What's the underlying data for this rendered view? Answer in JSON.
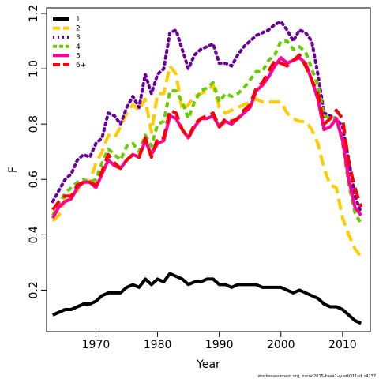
{
  "chart_data": {
    "type": "line",
    "xlabel": "Year",
    "ylabel": "F",
    "xlim": [
      1962,
      2014.5
    ],
    "ylim": [
      0.05,
      1.22
    ],
    "x_ticks": [
      1970,
      1980,
      1990,
      2000,
      2010
    ],
    "y_ticks": [
      0.2,
      0.4,
      0.6,
      0.8,
      1.0,
      1.2
    ],
    "grid": false,
    "legend_position": "top-left",
    "x": [
      1963,
      1964,
      1965,
      1966,
      1967,
      1968,
      1969,
      1970,
      1971,
      1972,
      1973,
      1974,
      1975,
      1976,
      1977,
      1978,
      1979,
      1980,
      1981,
      1982,
      1983,
      1984,
      1985,
      1986,
      1987,
      1988,
      1989,
      1990,
      1991,
      1992,
      1993,
      1994,
      1995,
      1996,
      1997,
      1998,
      1999,
      2000,
      2001,
      2002,
      2003,
      2004,
      2005,
      2006,
      2007,
      2008,
      2009,
      2010,
      2011,
      2012,
      2013
    ],
    "series": [
      {
        "name": "1",
        "color": "#000000",
        "dash": "solid",
        "values": [
          0.11,
          0.12,
          0.13,
          0.13,
          0.14,
          0.15,
          0.15,
          0.16,
          0.18,
          0.19,
          0.19,
          0.19,
          0.21,
          0.22,
          0.21,
          0.24,
          0.22,
          0.24,
          0.23,
          0.26,
          0.25,
          0.24,
          0.22,
          0.23,
          0.23,
          0.24,
          0.24,
          0.22,
          0.22,
          0.21,
          0.22,
          0.22,
          0.22,
          0.22,
          0.21,
          0.21,
          0.21,
          0.21,
          0.2,
          0.19,
          0.2,
          0.19,
          0.18,
          0.17,
          0.15,
          0.14,
          0.14,
          0.13,
          0.11,
          0.09,
          0.08
        ]
      },
      {
        "name": "2",
        "color": "#ffcc00",
        "dash": "long",
        "values": [
          0.45,
          0.47,
          0.53,
          0.54,
          0.56,
          0.59,
          0.59,
          0.66,
          0.7,
          0.76,
          0.75,
          0.79,
          0.84,
          0.87,
          0.85,
          0.89,
          0.77,
          0.91,
          0.91,
          1.01,
          0.98,
          0.85,
          0.87,
          0.9,
          0.91,
          0.92,
          0.94,
          0.86,
          0.84,
          0.85,
          0.86,
          0.87,
          0.88,
          0.89,
          0.88,
          0.88,
          0.88,
          0.88,
          0.84,
          0.82,
          0.81,
          0.81,
          0.78,
          0.73,
          0.64,
          0.58,
          0.57,
          0.46,
          0.4,
          0.35,
          0.32
        ]
      },
      {
        "name": "3",
        "color": "#6a0099",
        "dash": "dotted",
        "values": [
          0.52,
          0.56,
          0.6,
          0.62,
          0.67,
          0.69,
          0.68,
          0.73,
          0.75,
          0.84,
          0.83,
          0.8,
          0.86,
          0.9,
          0.86,
          0.98,
          0.91,
          0.98,
          1.0,
          1.13,
          1.14,
          1.07,
          1.0,
          1.05,
          1.07,
          1.08,
          1.09,
          1.02,
          1.02,
          1.01,
          1.05,
          1.08,
          1.1,
          1.12,
          1.13,
          1.14,
          1.16,
          1.17,
          1.14,
          1.1,
          1.14,
          1.13,
          1.1,
          0.98,
          0.84,
          0.83,
          0.82,
          0.79,
          0.67,
          0.54,
          0.48
        ]
      },
      {
        "name": "4",
        "color": "#66cc00",
        "dash": "short",
        "values": [
          0.47,
          0.51,
          0.55,
          0.57,
          0.59,
          0.6,
          0.59,
          0.6,
          0.66,
          0.71,
          0.69,
          0.67,
          0.72,
          0.73,
          0.7,
          0.76,
          0.72,
          0.8,
          0.81,
          0.92,
          0.92,
          0.88,
          0.82,
          0.88,
          0.92,
          0.93,
          0.95,
          0.88,
          0.91,
          0.9,
          0.91,
          0.93,
          0.96,
          0.99,
          0.99,
          1.03,
          1.05,
          1.1,
          1.1,
          1.07,
          1.08,
          1.06,
          1.0,
          0.94,
          0.83,
          0.82,
          0.82,
          0.73,
          0.58,
          0.48,
          0.44
        ]
      },
      {
        "name": "5",
        "color": "#ff0099",
        "dash": "solid",
        "values": [
          0.46,
          0.5,
          0.52,
          0.53,
          0.57,
          0.59,
          0.59,
          0.57,
          0.62,
          0.67,
          0.65,
          0.64,
          0.67,
          0.69,
          0.68,
          0.74,
          0.69,
          0.73,
          0.74,
          0.83,
          0.82,
          0.78,
          0.75,
          0.79,
          0.82,
          0.82,
          0.83,
          0.79,
          0.81,
          0.8,
          0.82,
          0.84,
          0.86,
          0.92,
          0.94,
          0.97,
          1.01,
          1.04,
          1.02,
          1.03,
          1.04,
          1.02,
          0.96,
          0.89,
          0.78,
          0.79,
          0.82,
          0.74,
          0.6,
          0.5,
          0.47
        ]
      },
      {
        "name": "6+",
        "color": "#ff0000",
        "dash": "long",
        "values": [
          0.49,
          0.52,
          0.54,
          0.54,
          0.58,
          0.59,
          0.59,
          0.58,
          0.63,
          0.69,
          0.66,
          0.64,
          0.67,
          0.69,
          0.68,
          0.75,
          0.68,
          0.75,
          0.75,
          0.85,
          0.84,
          0.78,
          0.75,
          0.8,
          0.82,
          0.83,
          0.84,
          0.79,
          0.82,
          0.81,
          0.82,
          0.85,
          0.87,
          0.93,
          0.95,
          0.99,
          1.03,
          1.02,
          1.01,
          1.03,
          1.05,
          1.01,
          0.96,
          0.91,
          0.8,
          0.82,
          0.85,
          0.82,
          0.66,
          0.57,
          0.5
        ]
      }
    ]
  },
  "credit": "stockassessment.org, nscod2015-base2-quartQ11sd, r4237"
}
